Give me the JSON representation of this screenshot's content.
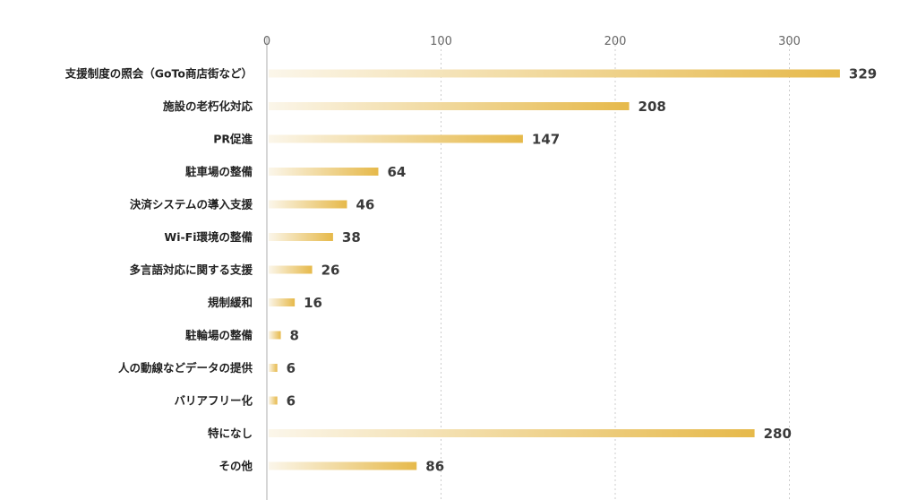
{
  "chart_data": {
    "type": "bar",
    "orientation": "horizontal",
    "categories": [
      "支援制度の照会（GoTo商店街など）",
      "施設の老朽化対応",
      "PR促進",
      "駐車場の整備",
      "決済システムの導入支援",
      "Wi-Fi環境の整備",
      "多言語対応に関する支援",
      "規制緩和",
      "駐輪場の整備",
      "人の動線などデータの提供",
      "バリアフリー化",
      "特になし",
      "その他"
    ],
    "values": [
      329,
      208,
      147,
      64,
      46,
      38,
      26,
      16,
      8,
      6,
      6,
      280,
      86
    ],
    "xlim": [
      0,
      340
    ],
    "xticks": [
      "0",
      "100",
      "200",
      "300"
    ],
    "tick_values": [
      0,
      100,
      200,
      300
    ],
    "grid": true,
    "legend": "none",
    "colors": {
      "bar_start": "#f8efd9",
      "bar_end": "#e6b94a",
      "grid": "#cccccc",
      "axis": "#bbbbbb",
      "value_label": "#3a3a3a",
      "highlight_value_label": "#7fb2b5"
    },
    "highlight_index": 12
  }
}
